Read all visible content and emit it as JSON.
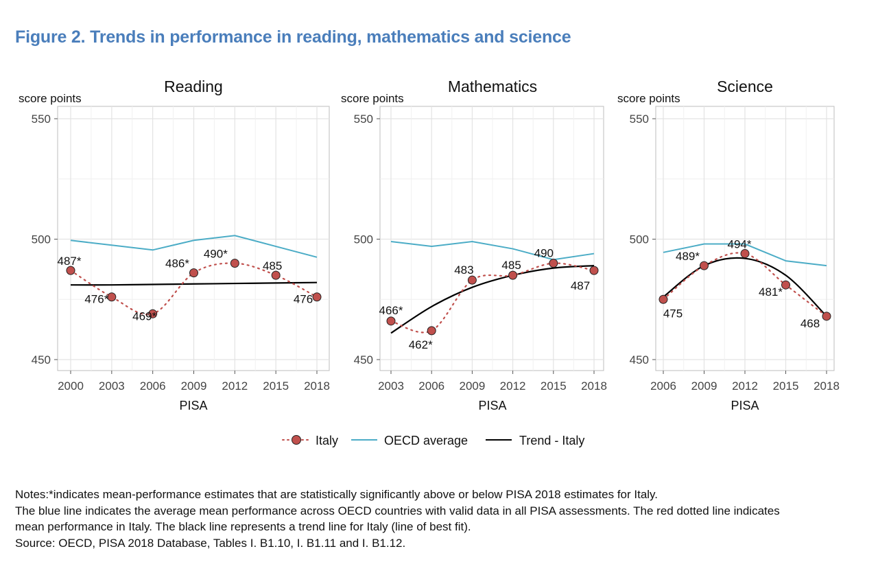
{
  "figure": {
    "title": "Figure 2. Trends in performance in reading, mathematics and science"
  },
  "colors": {
    "italy": "#c0504d",
    "oecd": "#4bacc6",
    "trend": "#000000",
    "grid": "#e3e3e3",
    "frame": "#bdbdbd"
  },
  "chart_data": [
    {
      "type": "line",
      "title": "Reading",
      "ylabel": "score points",
      "xlabel": "PISA",
      "ylim": [
        450,
        550
      ],
      "yticks": [
        450,
        500,
        550
      ],
      "x": [
        2000,
        2003,
        2006,
        2009,
        2012,
        2015,
        2018
      ],
      "series": [
        {
          "name": "Italy",
          "values": [
            487,
            476,
            469,
            486,
            490,
            485,
            476
          ],
          "labels": [
            "487*",
            "476*",
            "469*",
            "486*",
            "490*",
            "485",
            "476"
          ]
        },
        {
          "name": "OECD average",
          "values": [
            499.5,
            497.5,
            495.5,
            499.5,
            501.5,
            497,
            492.5
          ]
        },
        {
          "name": "Trend - Italy",
          "values": [
            481,
            481,
            481.2,
            481.4,
            481.6,
            481.8,
            482
          ]
        }
      ]
    },
    {
      "type": "line",
      "title": "Mathematics",
      "ylabel": "score points",
      "xlabel": "PISA",
      "ylim": [
        450,
        550
      ],
      "yticks": [
        450,
        500,
        550
      ],
      "x": [
        2003,
        2006,
        2009,
        2012,
        2015,
        2018
      ],
      "series": [
        {
          "name": "Italy",
          "values": [
            466,
            462,
            483,
            485,
            490,
            487
          ],
          "labels": [
            "466*",
            "462*",
            "483",
            "485",
            "490",
            "487"
          ]
        },
        {
          "name": "OECD average",
          "values": [
            499,
            497,
            499,
            496,
            491.5,
            494
          ]
        },
        {
          "name": "Trend - Italy",
          "values": [
            461,
            472,
            480,
            485,
            488,
            489
          ]
        }
      ]
    },
    {
      "type": "line",
      "title": "Science",
      "ylabel": "score points",
      "xlabel": "PISA",
      "ylim": [
        450,
        550
      ],
      "yticks": [
        450,
        500,
        550
      ],
      "x": [
        2006,
        2009,
        2012,
        2015,
        2018
      ],
      "series": [
        {
          "name": "Italy",
          "values": [
            475,
            489,
            494,
            481,
            468
          ],
          "labels": [
            "475",
            "489*",
            "494*",
            "481*",
            "468"
          ]
        },
        {
          "name": "OECD average",
          "values": [
            494.5,
            498,
            498,
            491,
            489
          ]
        },
        {
          "name": "Trend - Italy",
          "values": [
            476,
            489,
            492,
            485,
            468
          ]
        }
      ]
    }
  ],
  "legend": {
    "italy": "Italy",
    "oecd": "OECD average",
    "trend": "Trend - Italy"
  },
  "notes": [
    "Notes:*indicates mean-performance estimates that are statistically significantly above or below PISA 2018 estimates for Italy.",
    "The blue line indicates the average mean performance across OECD countries with valid data in all PISA assessments. The red dotted line indicates",
    "mean performance in Italy. The black line represents a trend line for Italy (line of best fit).",
    "Source: OECD, PISA 2018 Database, Tables I. B1.10, I. B1.11 and I. B1.12."
  ]
}
